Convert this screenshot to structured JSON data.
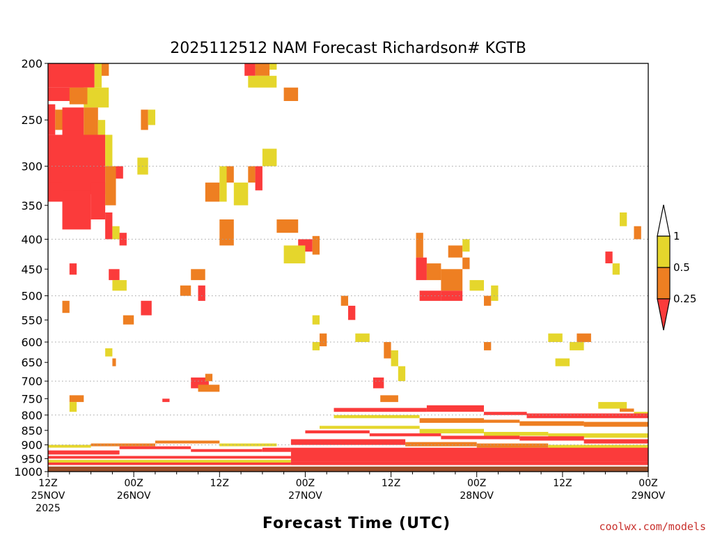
{
  "chart_data": {
    "type": "heatmap",
    "title": "2025112512 NAM Forecast Richardson# KGTB",
    "xlabel": "Forecast Time (UTC)",
    "ylabel": "",
    "credit": "coolwx.com/models",
    "x_axis": {
      "range_hours": [
        0,
        84
      ],
      "ticks": [
        {
          "hour": 0,
          "line1": "12Z",
          "line2": "25NOV",
          "line3": "2025"
        },
        {
          "hour": 12,
          "line1": "00Z",
          "line2": "26NOV",
          "line3": ""
        },
        {
          "hour": 24,
          "line1": "12Z",
          "line2": "",
          "line3": ""
        },
        {
          "hour": 36,
          "line1": "00Z",
          "line2": "27NOV",
          "line3": ""
        },
        {
          "hour": 48,
          "line1": "12Z",
          "line2": "",
          "line3": ""
        },
        {
          "hour": 60,
          "line1": "00Z",
          "line2": "28NOV",
          "line3": ""
        },
        {
          "hour": 72,
          "line1": "12Z",
          "line2": "",
          "line3": ""
        },
        {
          "hour": 84,
          "line1": "00Z",
          "line2": "29NOV",
          "line3": ""
        }
      ]
    },
    "y_axis": {
      "unit": "hPa",
      "range": [
        200,
        1000
      ],
      "scale": "log",
      "ticks": [
        200,
        250,
        300,
        350,
        400,
        450,
        500,
        550,
        600,
        650,
        700,
        750,
        800,
        850,
        900,
        950,
        1000
      ]
    },
    "legend": {
      "placement": "right",
      "bins": [
        {
          "label": "1",
          "range": [
            1,
            null
          ],
          "color": "#ffffff"
        },
        {
          "label": "0.5",
          "range": [
            0.5,
            1
          ],
          "color": "#e5d62c"
        },
        {
          "label": "0.25",
          "range": [
            0.25,
            0.5
          ],
          "color": "#ee7f22"
        },
        {
          "label": "",
          "range": [
            null,
            0.25
          ],
          "color": "#fb3b3b"
        }
      ]
    },
    "colors": {
      "yellow": "#e5d62c",
      "orange": "#ee7f22",
      "red": "#fb3b3b",
      "ground": "#9c4f2a",
      "grid": "#a0a0a0"
    },
    "cells_note": "each cell: [hour_start, hour_end, pressure_top_hPa, pressure_bottom_hPa, category] where category 1=0.5-1 (yellow), 2=0.25-0.5 (orange), 3=<0.25 (red)",
    "cells": [
      [
        0,
        6.5,
        200,
        220,
        3
      ],
      [
        6.5,
        7.5,
        200,
        220,
        1
      ],
      [
        7.5,
        8.5,
        200,
        210,
        2
      ],
      [
        0,
        2,
        220,
        232,
        3
      ],
      [
        2,
        5,
        220,
        232,
        3
      ],
      [
        5,
        8.5,
        220,
        238,
        1
      ],
      [
        3,
        5.5,
        220,
        235,
        2
      ],
      [
        0,
        1,
        235,
        265,
        3
      ],
      [
        1,
        2,
        240,
        260,
        2
      ],
      [
        2,
        5,
        238,
        270,
        3
      ],
      [
        5,
        7,
        238,
        270,
        2
      ],
      [
        7,
        8,
        250,
        270,
        1
      ],
      [
        0,
        8,
        265,
        335,
        3
      ],
      [
        8,
        9,
        265,
        300,
        1
      ],
      [
        0,
        2,
        320,
        345,
        3
      ],
      [
        2,
        6,
        330,
        385,
        3
      ],
      [
        6,
        8,
        320,
        370,
        3
      ],
      [
        8,
        9.5,
        300,
        350,
        2
      ],
      [
        9.5,
        10.5,
        300,
        315,
        3
      ],
      [
        8,
        9,
        360,
        400,
        3
      ],
      [
        9,
        10,
        380,
        400,
        1
      ],
      [
        10,
        11,
        390,
        410,
        3
      ],
      [
        13,
        14,
        240,
        260,
        2
      ],
      [
        14,
        15,
        240,
        255,
        1
      ],
      [
        12.5,
        14,
        290,
        310,
        1
      ],
      [
        27.5,
        29,
        200,
        210,
        3
      ],
      [
        29,
        31,
        200,
        210,
        2
      ],
      [
        31,
        32,
        200,
        205,
        1
      ],
      [
        28,
        32,
        210,
        220,
        1
      ],
      [
        33,
        35,
        220,
        232,
        2
      ],
      [
        22,
        24,
        320,
        345,
        2
      ],
      [
        24,
        25,
        300,
        345,
        1
      ],
      [
        25,
        26,
        300,
        320,
        2
      ],
      [
        26,
        28,
        320,
        350,
        1
      ],
      [
        28,
        29,
        300,
        320,
        2
      ],
      [
        29,
        30,
        300,
        330,
        3
      ],
      [
        30,
        32,
        280,
        300,
        1
      ],
      [
        32,
        35,
        370,
        390,
        2
      ],
      [
        35,
        37,
        400,
        420,
        3
      ],
      [
        37,
        38,
        395,
        425,
        2
      ],
      [
        33,
        36,
        410,
        440,
        1
      ],
      [
        24,
        26,
        370,
        410,
        2
      ],
      [
        20,
        22,
        450,
        470,
        2
      ],
      [
        18.5,
        20,
        480,
        500,
        2
      ],
      [
        21,
        22,
        480,
        510,
        3
      ],
      [
        3,
        4,
        440,
        460,
        3
      ],
      [
        8.5,
        10,
        450,
        470,
        3
      ],
      [
        9,
        11,
        470,
        490,
        1
      ],
      [
        10.5,
        12,
        540,
        560,
        2
      ],
      [
        13,
        14.5,
        510,
        540,
        3
      ],
      [
        2,
        3,
        510,
        535,
        2
      ],
      [
        9,
        9.5,
        640,
        660,
        2
      ],
      [
        8,
        9,
        615,
        635,
        1
      ],
      [
        20,
        22.5,
        690,
        720,
        3
      ],
      [
        21,
        24,
        710,
        730,
        2
      ],
      [
        22,
        23,
        680,
        700,
        2
      ],
      [
        16,
        17,
        750,
        760,
        3
      ],
      [
        3,
        5,
        740,
        760,
        2
      ],
      [
        3,
        4,
        760,
        790,
        1
      ],
      [
        37,
        38,
        540,
        560,
        1
      ],
      [
        38,
        39,
        580,
        610,
        2
      ],
      [
        37,
        38,
        600,
        620,
        1
      ],
      [
        41,
        42,
        500,
        520,
        2
      ],
      [
        42,
        43,
        520,
        550,
        3
      ],
      [
        43,
        45,
        580,
        600,
        1
      ],
      [
        45.5,
        47,
        690,
        720,
        3
      ],
      [
        47,
        48,
        600,
        640,
        2
      ],
      [
        48,
        49,
        620,
        660,
        1
      ],
      [
        49,
        50,
        660,
        700,
        1
      ],
      [
        46.5,
        49,
        740,
        760,
        2
      ],
      [
        51.5,
        52.5,
        390,
        430,
        2
      ],
      [
        51.5,
        53,
        430,
        470,
        3
      ],
      [
        53,
        55,
        440,
        470,
        2
      ],
      [
        55,
        58,
        450,
        490,
        2
      ],
      [
        58,
        59,
        430,
        450,
        2
      ],
      [
        52,
        55,
        490,
        510,
        3
      ],
      [
        55,
        58,
        490,
        510,
        3
      ],
      [
        56,
        58,
        410,
        430,
        2
      ],
      [
        58,
        59,
        400,
        420,
        1
      ],
      [
        59,
        61,
        470,
        490,
        1
      ],
      [
        61,
        62,
        500,
        520,
        2
      ],
      [
        62,
        63,
        480,
        510,
        1
      ],
      [
        61,
        62,
        600,
        620,
        2
      ],
      [
        70,
        72,
        580,
        600,
        1
      ],
      [
        71,
        73,
        640,
        660,
        1
      ],
      [
        73,
        75,
        600,
        620,
        1
      ],
      [
        74,
        76,
        580,
        600,
        2
      ],
      [
        78,
        79,
        420,
        440,
        3
      ],
      [
        79,
        80,
        440,
        460,
        1
      ],
      [
        82,
        83,
        380,
        400,
        2
      ],
      [
        80,
        81,
        360,
        380,
        1
      ],
      [
        77,
        81,
        760,
        780,
        1
      ],
      [
        80,
        82,
        780,
        790,
        2
      ],
      [
        82,
        84,
        790,
        800,
        1
      ],
      [
        40,
        53,
        778,
        790,
        3
      ],
      [
        53,
        61,
        770,
        790,
        3
      ],
      [
        61,
        67,
        790,
        800,
        3
      ],
      [
        67,
        84,
        795,
        810,
        3
      ],
      [
        40,
        52,
        800,
        810,
        1
      ],
      [
        52,
        61,
        810,
        825,
        2
      ],
      [
        61,
        66,
        815,
        825,
        2
      ],
      [
        66,
        75,
        820,
        835,
        2
      ],
      [
        75,
        84,
        822,
        838,
        2
      ],
      [
        38,
        52,
        835,
        845,
        1
      ],
      [
        52,
        61,
        845,
        860,
        1
      ],
      [
        61,
        70,
        855,
        868,
        1
      ],
      [
        70,
        84,
        860,
        875,
        1
      ],
      [
        36,
        45,
        850,
        860,
        3
      ],
      [
        45,
        55,
        860,
        870,
        3
      ],
      [
        55,
        66,
        868,
        880,
        3
      ],
      [
        66,
        75,
        870,
        885,
        3
      ],
      [
        75,
        84,
        880,
        895,
        3
      ],
      [
        34,
        50,
        880,
        900,
        3
      ],
      [
        50,
        60,
        890,
        905,
        2
      ],
      [
        60,
        70,
        895,
        910,
        2
      ],
      [
        70,
        84,
        900,
        915,
        1
      ],
      [
        0,
        6,
        900,
        910,
        1
      ],
      [
        6,
        15,
        895,
        905,
        2
      ],
      [
        15,
        24,
        885,
        895,
        2
      ],
      [
        24,
        32,
        895,
        905,
        1
      ],
      [
        0,
        10,
        920,
        935,
        3
      ],
      [
        10,
        20,
        905,
        915,
        3
      ],
      [
        20,
        30,
        915,
        925,
        3
      ],
      [
        30,
        34,
        910,
        925,
        3
      ],
      [
        0,
        34,
        940,
        950,
        3
      ],
      [
        0,
        34,
        955,
        965,
        1
      ],
      [
        0,
        34,
        965,
        975,
        3
      ],
      [
        34,
        84,
        910,
        960,
        3
      ],
      [
        34,
        84,
        960,
        978,
        3
      ]
    ]
  }
}
